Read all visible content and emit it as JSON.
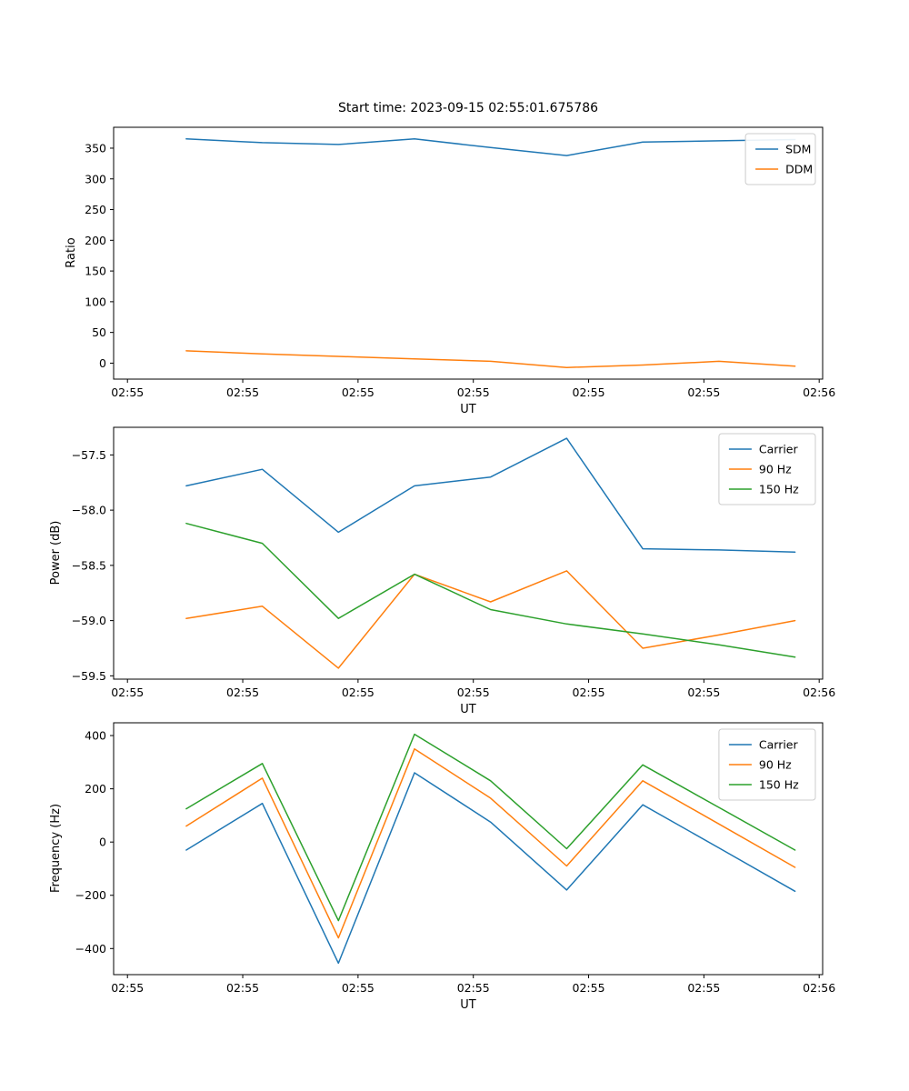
{
  "title": "Start time: 2023-09-15 02:55:01.675786",
  "colors": {
    "blue": "#1f77b4",
    "orange": "#ff7f0e",
    "green": "#2ca02c"
  },
  "chart_data": [
    {
      "type": "line",
      "title": "Start time: 2023-09-15 02:55:01.675786",
      "xlabel": "UT",
      "ylabel": "Ratio",
      "x_axis": {
        "unit": "seconds after 02:55:00",
        "ticks": [
          0,
          10,
          20,
          30,
          40,
          50,
          60
        ],
        "tick_labels": [
          "02:55",
          "02:55",
          "02:55",
          "02:55",
          "02:55",
          "02:55",
          "02:56"
        ],
        "lim": [
          -1.2,
          60.3
        ]
      },
      "y_axis": {
        "ticks": [
          0,
          50,
          100,
          150,
          200,
          250,
          300,
          350
        ],
        "tick_labels": [
          "0",
          "50",
          "100",
          "150",
          "200",
          "250",
          "300",
          "350"
        ],
        "lim": [
          -26,
          384
        ]
      },
      "x": [
        5.1,
        11.7,
        18.3,
        24.9,
        31.5,
        38.1,
        44.7,
        51.3,
        57.9
      ],
      "series": [
        {
          "name": "SDM",
          "color": "#1f77b4",
          "values": [
            365,
            359,
            356,
            365,
            351,
            338,
            360,
            362,
            364
          ]
        },
        {
          "name": "DDM",
          "color": "#ff7f0e",
          "values": [
            20,
            15,
            11,
            7,
            3,
            -7,
            -3,
            3,
            -5
          ]
        }
      ],
      "legend": {
        "position": "upper right",
        "labels": [
          "SDM",
          "DDM"
        ]
      }
    },
    {
      "type": "line",
      "title": "",
      "xlabel": "UT",
      "ylabel": "Power (dB)",
      "x_axis": {
        "unit": "seconds after 02:55:00",
        "ticks": [
          0,
          10,
          20,
          30,
          40,
          50,
          60
        ],
        "tick_labels": [
          "02:55",
          "02:55",
          "02:55",
          "02:55",
          "02:55",
          "02:55",
          "02:56"
        ],
        "lim": [
          -1.2,
          60.3
        ]
      },
      "y_axis": {
        "ticks": [
          -59.5,
          -59.0,
          -58.5,
          -58.0,
          -57.5
        ],
        "tick_labels": [
          "−59.5",
          "−59.0",
          "−58.5",
          "−58.0",
          "−57.5"
        ],
        "lim": [
          -59.53,
          -57.25
        ]
      },
      "x": [
        5.1,
        11.7,
        18.3,
        24.9,
        31.5,
        38.1,
        44.7,
        51.3,
        57.9
      ],
      "series": [
        {
          "name": "Carrier",
          "color": "#1f77b4",
          "values": [
            -57.78,
            -57.63,
            -58.2,
            -57.78,
            -57.7,
            -57.35,
            -58.35,
            -58.36,
            -58.38
          ]
        },
        {
          "name": "90 Hz",
          "color": "#ff7f0e",
          "values": [
            -58.98,
            -58.87,
            -59.43,
            -58.58,
            -58.83,
            -58.55,
            -59.25,
            -59.13,
            -59.0
          ]
        },
        {
          "name": "150 Hz",
          "color": "#2ca02c",
          "values": [
            -58.12,
            -58.3,
            -58.98,
            -58.58,
            -58.9,
            -59.03,
            -59.12,
            -59.22,
            -59.33
          ]
        }
      ],
      "legend": {
        "position": "upper right",
        "labels": [
          "Carrier",
          "90 Hz",
          "150 Hz"
        ]
      }
    },
    {
      "type": "line",
      "title": "",
      "xlabel": "UT",
      "ylabel": "Frequency (Hz)",
      "x_axis": {
        "unit": "seconds after 02:55:00",
        "ticks": [
          0,
          10,
          20,
          30,
          40,
          50,
          60
        ],
        "tick_labels": [
          "02:55",
          "02:55",
          "02:55",
          "02:55",
          "02:55",
          "02:55",
          "02:56"
        ],
        "lim": [
          -1.2,
          60.3
        ]
      },
      "y_axis": {
        "ticks": [
          -400,
          -200,
          0,
          200,
          400
        ],
        "tick_labels": [
          "−400",
          "−200",
          "0",
          "200",
          "400"
        ],
        "lim": [
          -498,
          448
        ]
      },
      "x": [
        5.1,
        11.7,
        18.3,
        24.9,
        31.5,
        38.1,
        44.7,
        51.3,
        57.9
      ],
      "series": [
        {
          "name": "Carrier",
          "color": "#1f77b4",
          "values": [
            -30,
            145,
            -455,
            260,
            75,
            -180,
            140,
            -22,
            -185
          ]
        },
        {
          "name": "90 Hz",
          "color": "#ff7f0e",
          "values": [
            60,
            240,
            -360,
            350,
            165,
            -90,
            230,
            68,
            -95
          ]
        },
        {
          "name": "150 Hz",
          "color": "#2ca02c",
          "values": [
            125,
            295,
            -295,
            405,
            230,
            -25,
            290,
            130,
            -30
          ]
        }
      ],
      "legend": {
        "position": "upper right",
        "labels": [
          "Carrier",
          "90 Hz",
          "150 Hz"
        ]
      }
    }
  ]
}
